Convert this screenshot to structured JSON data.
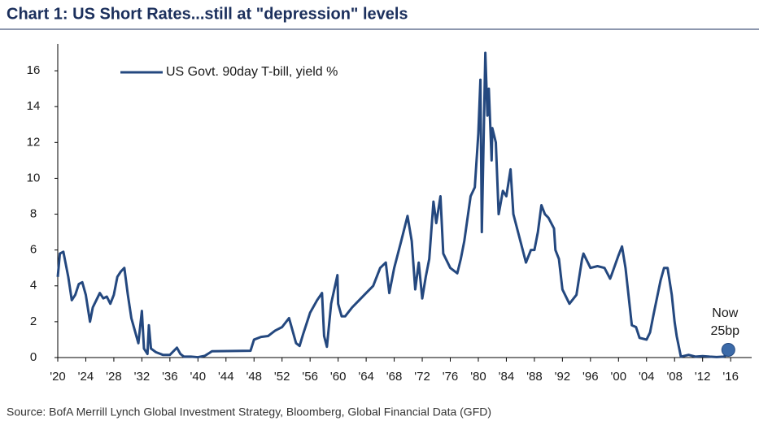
{
  "chart_data": {
    "type": "line",
    "title": "Chart 1: US Short Rates...still at \"depression\" levels",
    "source": "Source:  BofA Merrill Lynch Global Investment Strategy, Bloomberg, Global Financial Data (GFD)",
    "x": [
      1920,
      1920.3,
      1920.8,
      1921.5,
      1922,
      1922.5,
      1923,
      1923.5,
      1924,
      1924.6,
      1925,
      1925.5,
      1926,
      1926.5,
      1927,
      1927.5,
      1928,
      1928.5,
      1929,
      1929.5,
      1930,
      1930.5,
      1931,
      1931.5,
      1932,
      1932.3,
      1932.8,
      1933,
      1933.3,
      1934,
      1935,
      1936,
      1937,
      1937.5,
      1938,
      1939,
      1940,
      1941,
      1942,
      1947.5,
      1948,
      1949,
      1950,
      1951,
      1952,
      1953,
      1953.5,
      1954,
      1954.5,
      1955,
      1956,
      1957,
      1957.7,
      1958,
      1958.4,
      1959,
      1959.9,
      1960,
      1960.5,
      1961,
      1962,
      1963,
      1964,
      1965,
      1966,
      1966.8,
      1967.3,
      1968,
      1969,
      1969.9,
      1970.5,
      1971,
      1971.5,
      1972,
      1972.5,
      1973,
      1973.6,
      1974,
      1974.6,
      1975,
      1976,
      1977,
      1977.5,
      1978,
      1978.9,
      1979.5,
      1980,
      1980.3,
      1980.5,
      1980.9,
      1981,
      1981.3,
      1981.5,
      1981.9,
      1982,
      1982.5,
      1982.9,
      1983,
      1983.5,
      1984,
      1984.6,
      1985,
      1986,
      1986.8,
      1987.5,
      1988,
      1988.5,
      1989,
      1989.5,
      1990,
      1990.8,
      1991,
      1991.5,
      1992,
      1993,
      1994,
      1994.8,
      1995,
      1996,
      1997,
      1998,
      1998.8,
      1999,
      2000,
      2000.5,
      2001,
      2001.9,
      2002.5,
      2003,
      2004,
      2004.5,
      2005,
      2006,
      2006.5,
      2007,
      2007.6,
      2008,
      2008.3,
      2008.9,
      2010,
      2011,
      2012,
      2013,
      2014,
      2015,
      2015.9
    ],
    "series": [
      {
        "name": "US Govt. 90day T-bill, yield %",
        "color": "#24487f",
        "values": [
          4.5,
          5.8,
          5.9,
          4.5,
          3.2,
          3.5,
          4.1,
          4.2,
          3.5,
          2.0,
          2.8,
          3.2,
          3.6,
          3.3,
          3.4,
          3.0,
          3.5,
          4.5,
          4.8,
          5.0,
          3.5,
          2.2,
          1.5,
          0.8,
          2.6,
          0.5,
          0.2,
          1.8,
          0.5,
          0.3,
          0.15,
          0.15,
          0.55,
          0.2,
          0.05,
          0.05,
          0.02,
          0.1,
          0.35,
          0.38,
          1.0,
          1.15,
          1.2,
          1.5,
          1.7,
          2.2,
          1.5,
          0.8,
          0.65,
          1.3,
          2.5,
          3.2,
          3.6,
          1.2,
          0.6,
          3.0,
          4.6,
          3.0,
          2.3,
          2.3,
          2.8,
          3.2,
          3.6,
          4.0,
          5.0,
          5.3,
          3.6,
          5.0,
          6.5,
          7.9,
          6.5,
          3.8,
          5.3,
          3.3,
          4.5,
          5.5,
          8.7,
          7.5,
          9.0,
          5.8,
          5.0,
          4.7,
          5.5,
          6.5,
          9.0,
          9.5,
          12.5,
          15.5,
          7.0,
          15.0,
          17.0,
          13.5,
          15.0,
          11.0,
          12.8,
          12.0,
          8.0,
          8.2,
          9.3,
          9.0,
          10.5,
          8.0,
          6.5,
          5.3,
          6.0,
          6.0,
          7.0,
          8.5,
          8.0,
          7.8,
          7.2,
          6.0,
          5.5,
          3.8,
          3.0,
          3.5,
          5.5,
          5.8,
          5.0,
          5.1,
          5.0,
          4.4,
          4.6,
          5.7,
          6.2,
          5.0,
          1.8,
          1.7,
          1.1,
          1.0,
          1.4,
          2.4,
          4.3,
          5.0,
          5.0,
          3.5,
          2.0,
          1.2,
          0.05,
          0.15,
          0.05,
          0.08,
          0.05,
          0.03,
          0.05,
          0.25
        ]
      }
    ],
    "annotation": {
      "lines": [
        "Now",
        "25bp"
      ],
      "x": 2015.9,
      "y": 0.25,
      "color": "#3b6aa8"
    },
    "xlim": [
      1920,
      2019
    ],
    "ylim": [
      0,
      17.5
    ],
    "xticks": [
      {
        "value": 1920,
        "label": "'20"
      },
      {
        "value": 1924,
        "label": "'24"
      },
      {
        "value": 1928,
        "label": "'28"
      },
      {
        "value": 1932,
        "label": "'32"
      },
      {
        "value": 1936,
        "label": "'36"
      },
      {
        "value": 1940,
        "label": "'40"
      },
      {
        "value": 1944,
        "label": "'44"
      },
      {
        "value": 1948,
        "label": "'48"
      },
      {
        "value": 1952,
        "label": "'52"
      },
      {
        "value": 1956,
        "label": "'56"
      },
      {
        "value": 1960,
        "label": "'60"
      },
      {
        "value": 1964,
        "label": "'64"
      },
      {
        "value": 1968,
        "label": "'68"
      },
      {
        "value": 1972,
        "label": "'72"
      },
      {
        "value": 1976,
        "label": "'76"
      },
      {
        "value": 1980,
        "label": "'80"
      },
      {
        "value": 1984,
        "label": "'84"
      },
      {
        "value": 1988,
        "label": "'88"
      },
      {
        "value": 1992,
        "label": "'92"
      },
      {
        "value": 1996,
        "label": "'96"
      },
      {
        "value": 2000,
        "label": "'00"
      },
      {
        "value": 2004,
        "label": "'04"
      },
      {
        "value": 2008,
        "label": "'08"
      },
      {
        "value": 2012,
        "label": "'12"
      },
      {
        "value": 2016,
        "label": "'16"
      }
    ],
    "yticks": [
      0,
      2,
      4,
      6,
      8,
      10,
      12,
      14,
      16
    ],
    "grid": false
  }
}
